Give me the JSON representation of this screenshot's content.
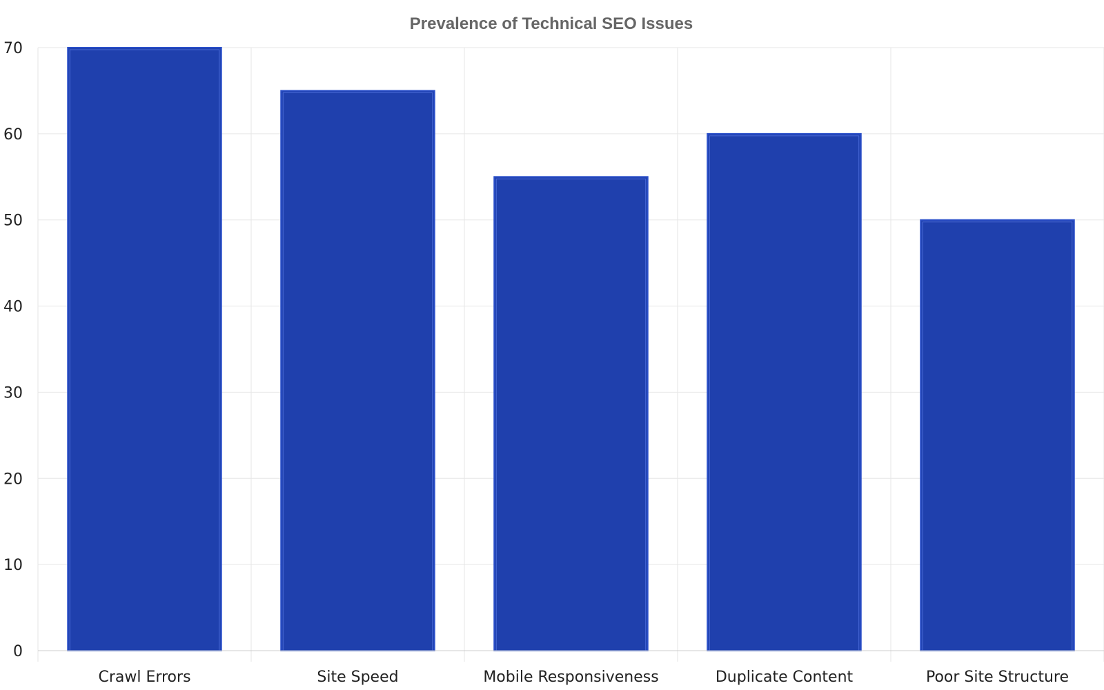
{
  "chart_data": {
    "type": "bar",
    "title": "Prevalence of Technical SEO Issues",
    "xlabel": "",
    "ylabel": "",
    "categories": [
      "Crawl Errors",
      "Site Speed",
      "Mobile Responsiveness",
      "Duplicate Content",
      "Poor Site Structure"
    ],
    "values": [
      70,
      65,
      55,
      60,
      50
    ],
    "ylim": [
      0,
      70
    ],
    "yticks": [
      0,
      10,
      20,
      30,
      40,
      50,
      60,
      70
    ],
    "grid": true,
    "legend": "none",
    "colors": {
      "bar_fill": "#1f40ad",
      "bar_edge": "#2a4fc9",
      "bar_inner_edge": "#4a6ad8"
    }
  }
}
